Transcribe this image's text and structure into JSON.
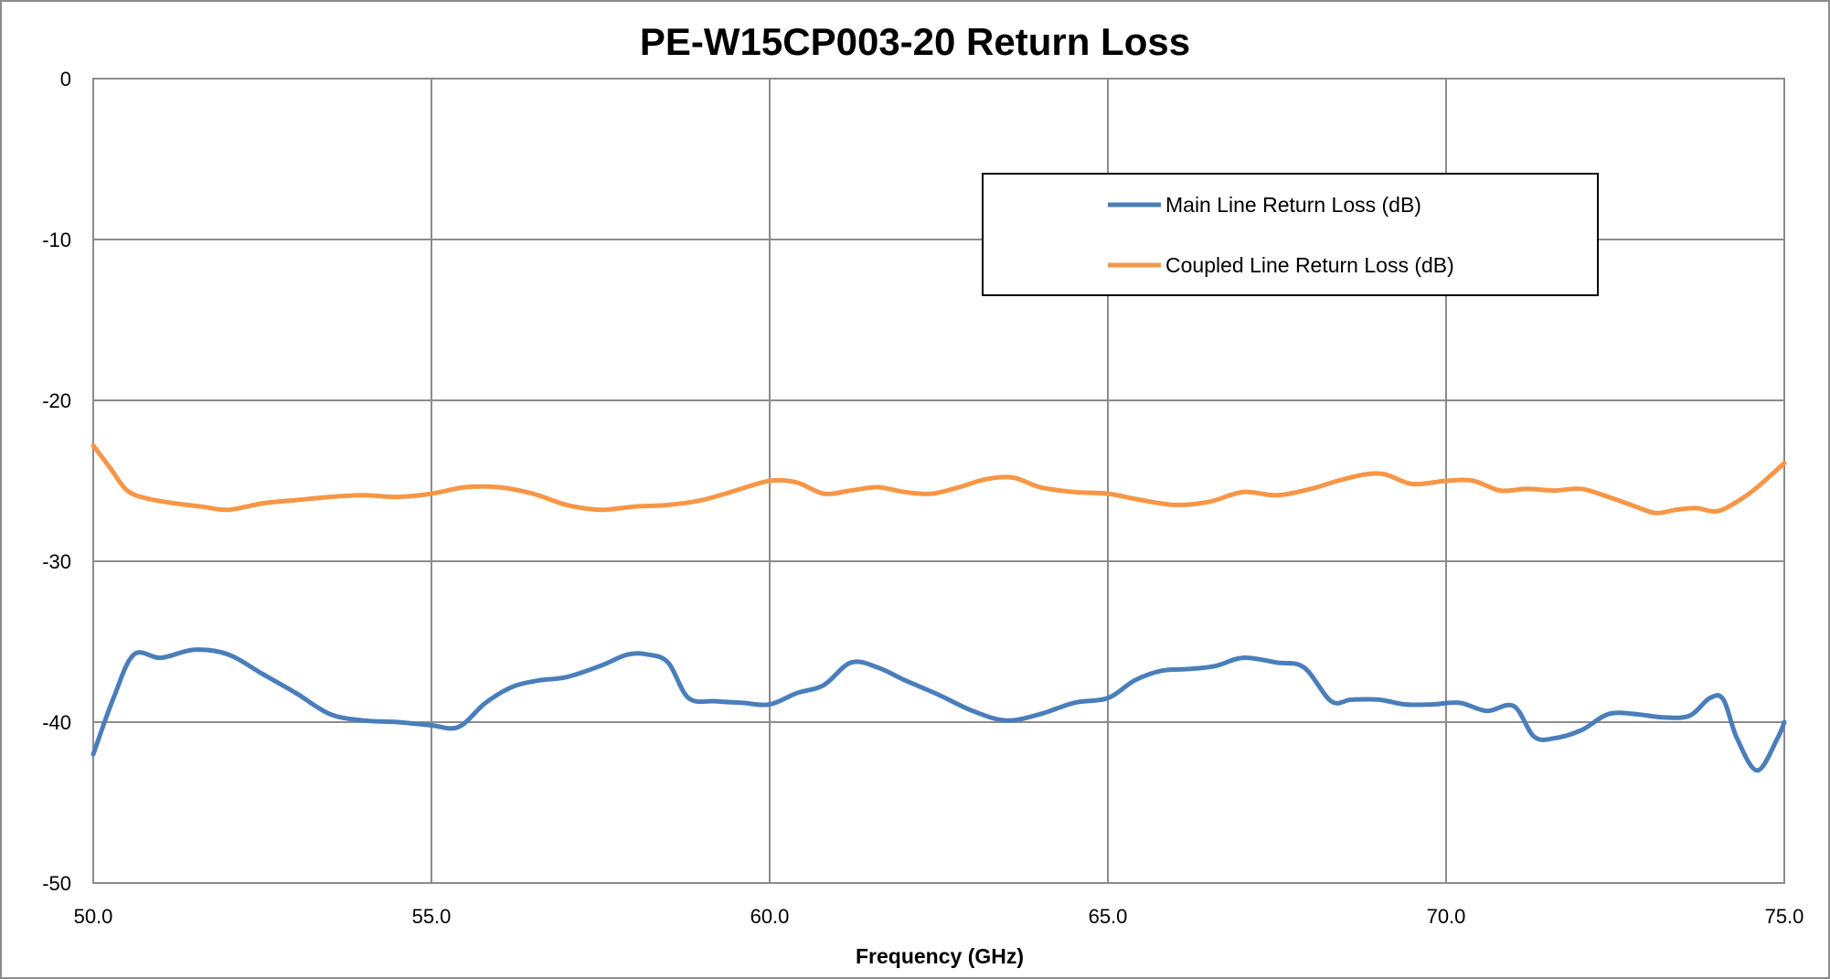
{
  "chart_data": {
    "type": "line",
    "title": "PE-W15CP003-20 Return Loss",
    "xlabel": "Frequency (GHz)",
    "ylabel": "",
    "xlim": [
      50,
      75
    ],
    "ylim": [
      -50,
      0
    ],
    "x_ticks": [
      "50.0",
      "55.0",
      "60.0",
      "65.0",
      "70.0",
      "75.0"
    ],
    "y_ticks": [
      "0",
      "-10",
      "-20",
      "-30",
      "-40",
      "-50"
    ],
    "grid": true,
    "legend_position": "top-right",
    "series": [
      {
        "name": "Main Line Return Loss (dB)",
        "color": "#4a7ebb",
        "x": [
          50.0,
          50.3,
          50.6,
          51.0,
          51.5,
          52.0,
          52.5,
          53.0,
          53.5,
          54.0,
          54.5,
          55.0,
          55.4,
          55.8,
          56.2,
          56.6,
          57.0,
          57.5,
          57.9,
          58.2,
          58.5,
          58.8,
          59.2,
          59.6,
          60.0,
          60.4,
          60.8,
          61.2,
          61.6,
          62.0,
          62.5,
          63.0,
          63.5,
          64.0,
          64.5,
          65.0,
          65.4,
          65.8,
          66.2,
          66.6,
          67.0,
          67.5,
          67.9,
          68.3,
          68.6,
          69.0,
          69.4,
          69.8,
          70.2,
          70.6,
          71.0,
          71.3,
          71.6,
          72.0,
          72.4,
          72.8,
          73.2,
          73.6,
          73.9,
          74.1,
          74.3,
          74.6,
          74.9,
          75.0
        ],
        "y": [
          -42.0,
          -38.5,
          -35.8,
          -36.0,
          -35.5,
          -35.8,
          -37.0,
          -38.2,
          -39.5,
          -39.9,
          -40.0,
          -40.2,
          -40.3,
          -38.8,
          -37.8,
          -37.4,
          -37.2,
          -36.5,
          -35.8,
          -35.8,
          -36.3,
          -38.5,
          -38.7,
          -38.8,
          -38.9,
          -38.2,
          -37.7,
          -36.3,
          -36.6,
          -37.4,
          -38.3,
          -39.3,
          -39.9,
          -39.5,
          -38.8,
          -38.5,
          -37.4,
          -36.8,
          -36.7,
          -36.5,
          -36.0,
          -36.3,
          -36.6,
          -38.7,
          -38.6,
          -38.6,
          -38.9,
          -38.9,
          -38.8,
          -39.3,
          -39.0,
          -40.9,
          -41.0,
          -40.5,
          -39.5,
          -39.5,
          -39.7,
          -39.6,
          -38.5,
          -38.6,
          -41.0,
          -43.0,
          -41.0,
          -40.0
        ]
      },
      {
        "name": "Coupled Line Return Loss (dB)",
        "color": "#f79646",
        "x": [
          50.0,
          50.25,
          50.5,
          50.8,
          51.2,
          51.6,
          52.0,
          52.5,
          53.0,
          53.5,
          54.0,
          54.5,
          55.0,
          55.5,
          56.0,
          56.5,
          57.0,
          57.5,
          58.0,
          58.5,
          59.0,
          59.5,
          60.0,
          60.4,
          60.8,
          61.2,
          61.6,
          62.0,
          62.4,
          62.8,
          63.2,
          63.6,
          64.0,
          64.5,
          65.0,
          65.5,
          66.0,
          66.5,
          67.0,
          67.5,
          68.0,
          68.4,
          68.8,
          69.1,
          69.5,
          70.0,
          70.4,
          70.8,
          71.2,
          71.6,
          72.0,
          72.4,
          72.8,
          73.1,
          73.4,
          73.7,
          74.0,
          74.3,
          74.6,
          75.0
        ],
        "y": [
          -22.8,
          -24.2,
          -25.6,
          -26.1,
          -26.4,
          -26.6,
          -26.8,
          -26.4,
          -26.2,
          -26.0,
          -25.9,
          -26.0,
          -25.8,
          -25.4,
          -25.4,
          -25.8,
          -26.5,
          -26.8,
          -26.6,
          -26.5,
          -26.2,
          -25.6,
          -25.0,
          -25.1,
          -25.8,
          -25.6,
          -25.4,
          -25.7,
          -25.8,
          -25.4,
          -24.9,
          -24.8,
          -25.4,
          -25.7,
          -25.8,
          -26.2,
          -26.5,
          -26.3,
          -25.7,
          -25.9,
          -25.5,
          -25.0,
          -24.6,
          -24.6,
          -25.2,
          -25.0,
          -25.0,
          -25.6,
          -25.5,
          -25.6,
          -25.5,
          -26.0,
          -26.6,
          -27.0,
          -26.8,
          -26.7,
          -26.9,
          -26.3,
          -25.4,
          -23.9
        ]
      }
    ]
  }
}
